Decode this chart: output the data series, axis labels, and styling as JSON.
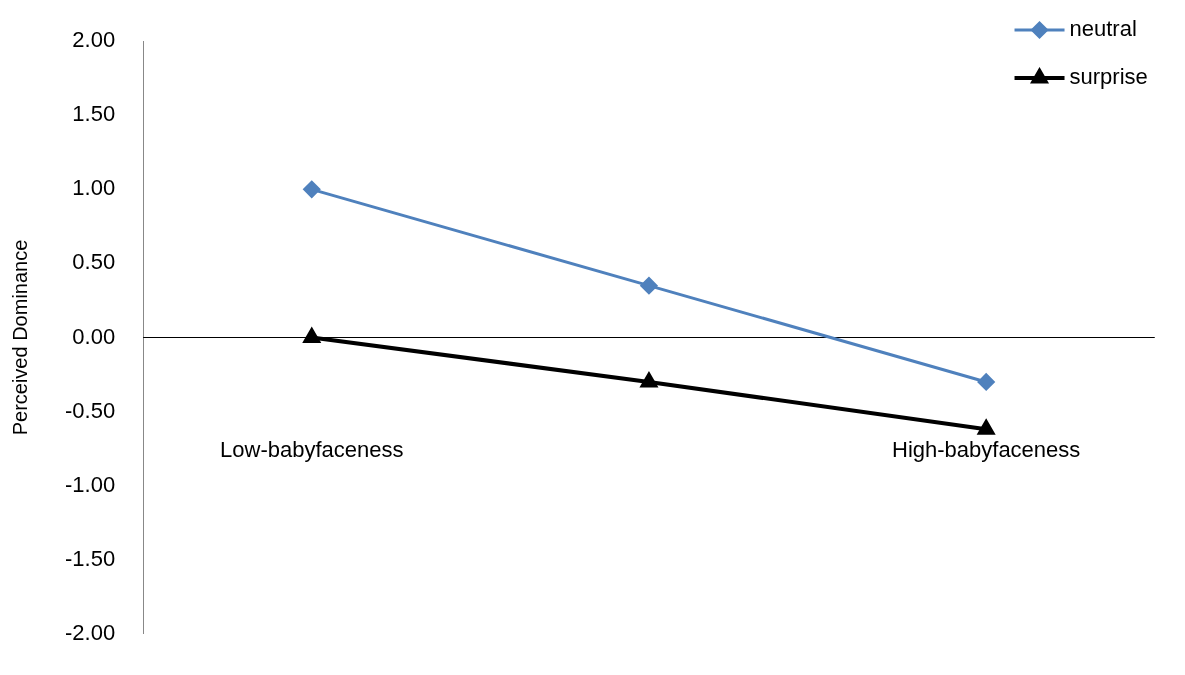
{
  "chart_data": {
    "type": "line",
    "ylabel": "Perceived Dominance",
    "categories": [
      "Low-babyfaceness",
      null,
      "High-babyfaceness"
    ],
    "series": [
      {
        "name": "neutral",
        "color": "#4f81bd",
        "values": [
          1.0,
          0.35,
          -0.3
        ],
        "marker": "diamond"
      },
      {
        "name": "surprise",
        "color": "#000000",
        "values": [
          0.0,
          -0.3,
          -0.62
        ],
        "marker": "triangle"
      }
    ],
    "ylim": [
      -2,
      2
    ],
    "yticks": [
      {
        "value": -2,
        "label": "-2.00"
      },
      {
        "value": -1.5,
        "label": "-1.50"
      },
      {
        "value": -1,
        "label": "-1.00"
      },
      {
        "value": -0.5,
        "label": "-0.50"
      },
      {
        "value": 0,
        "label": "0.00"
      },
      {
        "value": 0.5,
        "label": "0.50"
      },
      {
        "value": 1,
        "label": "1.00"
      },
      {
        "value": 1.5,
        "label": "1.50"
      },
      {
        "value": 2,
        "label": "2.00"
      }
    ],
    "ref_lines": [
      {
        "axis": "y",
        "value": 0,
        "color": "#000000"
      }
    ],
    "grid": false,
    "legend": "top right",
    "line_style": "solid"
  }
}
